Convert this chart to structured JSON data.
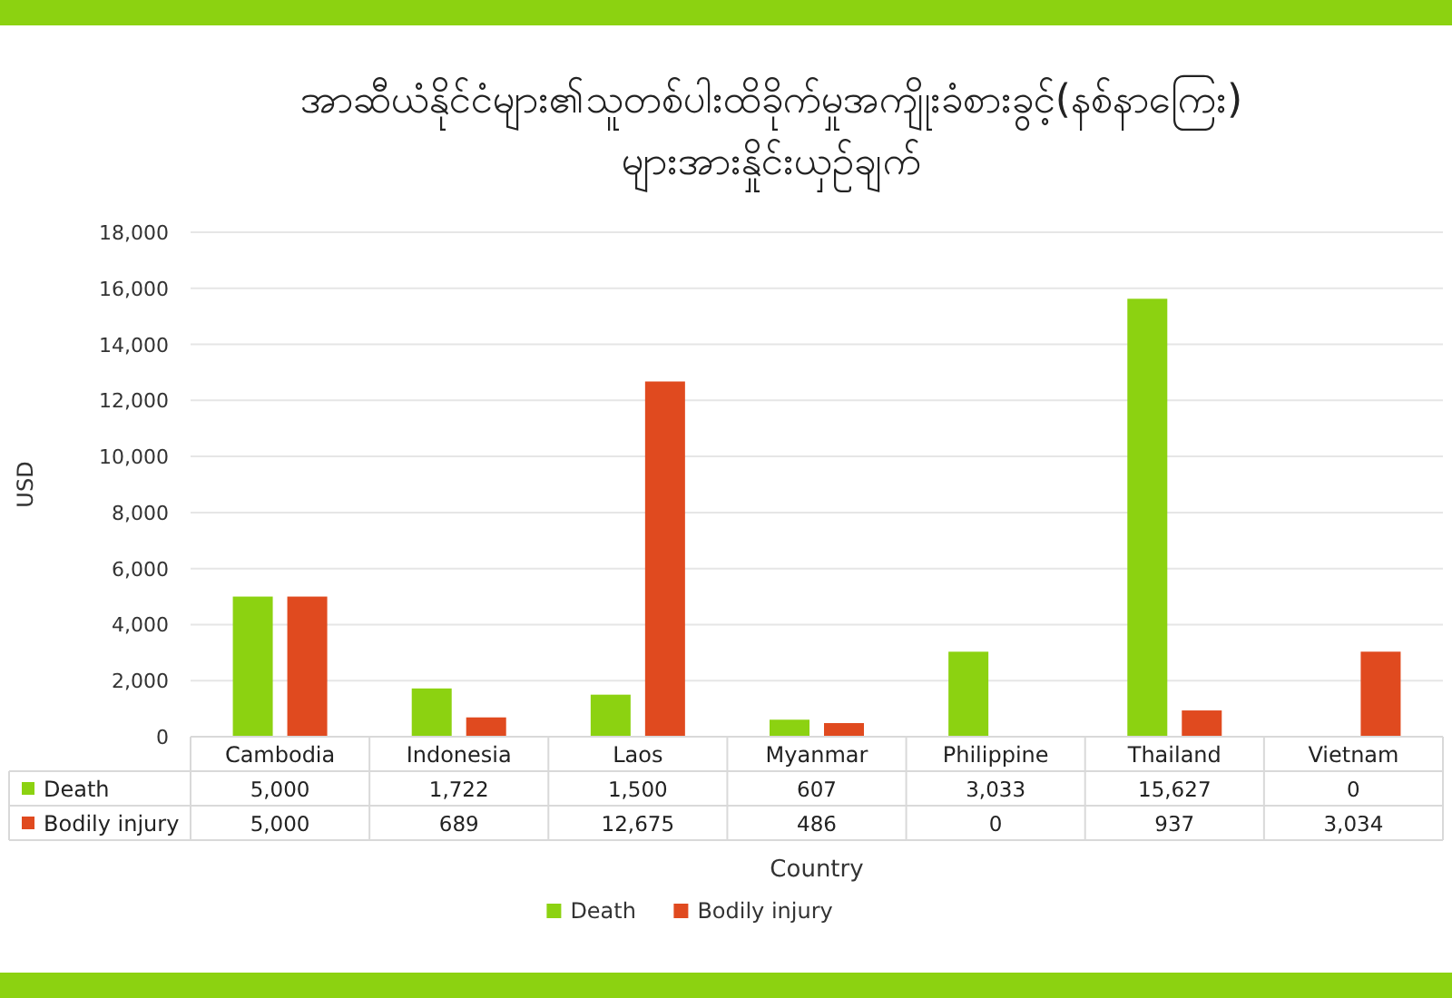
{
  "chart_data": {
    "type": "bar",
    "title": "အာဆီယံနိုင်ငံများ၏သူတစ်ပါးထိခိုက်မှုအကျိုးခံစားခွင့်(နစ်နာကြေး)\nများအားနှိုင်းယှဉ်ချက်",
    "xlabel": "Country",
    "ylabel": "USD",
    "categories": [
      "Cambodia",
      "Indonesia",
      "Laos",
      "Myanmar",
      "Philippine",
      "Thailand",
      "Vietnam"
    ],
    "series": [
      {
        "name": "Death",
        "color": "#8cd211",
        "values": [
          5000,
          1722,
          1500,
          607,
          3033,
          15627,
          0
        ],
        "value_labels": [
          "5,000",
          "1,722",
          "1,500",
          "607",
          "3,033",
          "15,627",
          "0"
        ]
      },
      {
        "name": "Bodily injury",
        "color": "#e04a1f",
        "values": [
          5000,
          689,
          12675,
          486,
          0,
          937,
          3034
        ],
        "value_labels": [
          "5,000",
          "689",
          "12,675",
          "486",
          "0",
          "937",
          "3,034"
        ]
      }
    ],
    "ylim": [
      0,
      18000
    ],
    "yticks": [
      {
        "value": 0,
        "label": "0"
      },
      {
        "value": 2000,
        "label": "2,000"
      },
      {
        "value": 4000,
        "label": "4,000"
      },
      {
        "value": 6000,
        "label": "6,000"
      },
      {
        "value": 8000,
        "label": "8,000"
      },
      {
        "value": 10000,
        "label": "10,000"
      },
      {
        "value": 12000,
        "label": "12,000"
      },
      {
        "value": 14000,
        "label": "14,000"
      },
      {
        "value": 16000,
        "label": "16,000"
      },
      {
        "value": 18000,
        "label": "18,000"
      }
    ],
    "grid": "y",
    "legend": "bottom"
  }
}
